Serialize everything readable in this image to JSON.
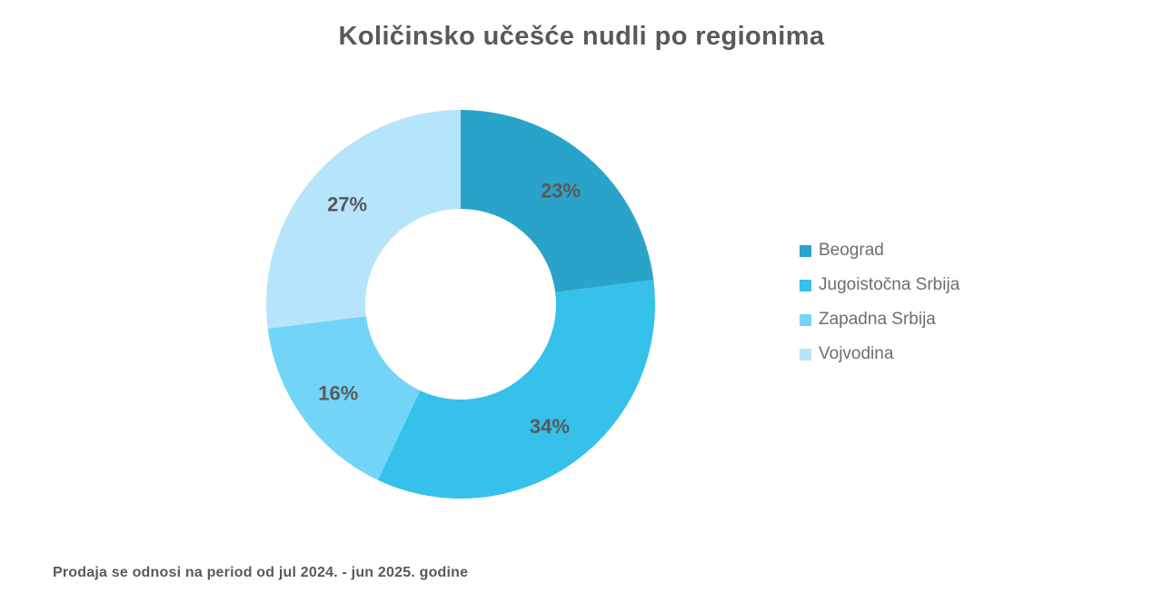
{
  "footnote": {
    "text": "Prodaja se odnosi na period od jul 2024. - jun 2025. godine"
  },
  "chart_data": {
    "type": "pie",
    "subtype": "donut",
    "title": "Količinsko učešće nudli po regionima",
    "categories": [
      "Beograd",
      "Jugoistočna Srbija",
      "Zapadna Srbija",
      "Vojvodina"
    ],
    "values": [
      23,
      34,
      16,
      27
    ],
    "unit": "%",
    "labels": [
      "23%",
      "34%",
      "16%",
      "27%"
    ],
    "colors": [
      "#2AA3CA",
      "#35C1EA",
      "#72D5F8",
      "#B6E4FB"
    ],
    "label_color": "#595959",
    "start_angle_deg": 0,
    "direction": "clockwise",
    "inner_radius_ratio": 0.49,
    "legend_position": "right",
    "grid": false
  }
}
